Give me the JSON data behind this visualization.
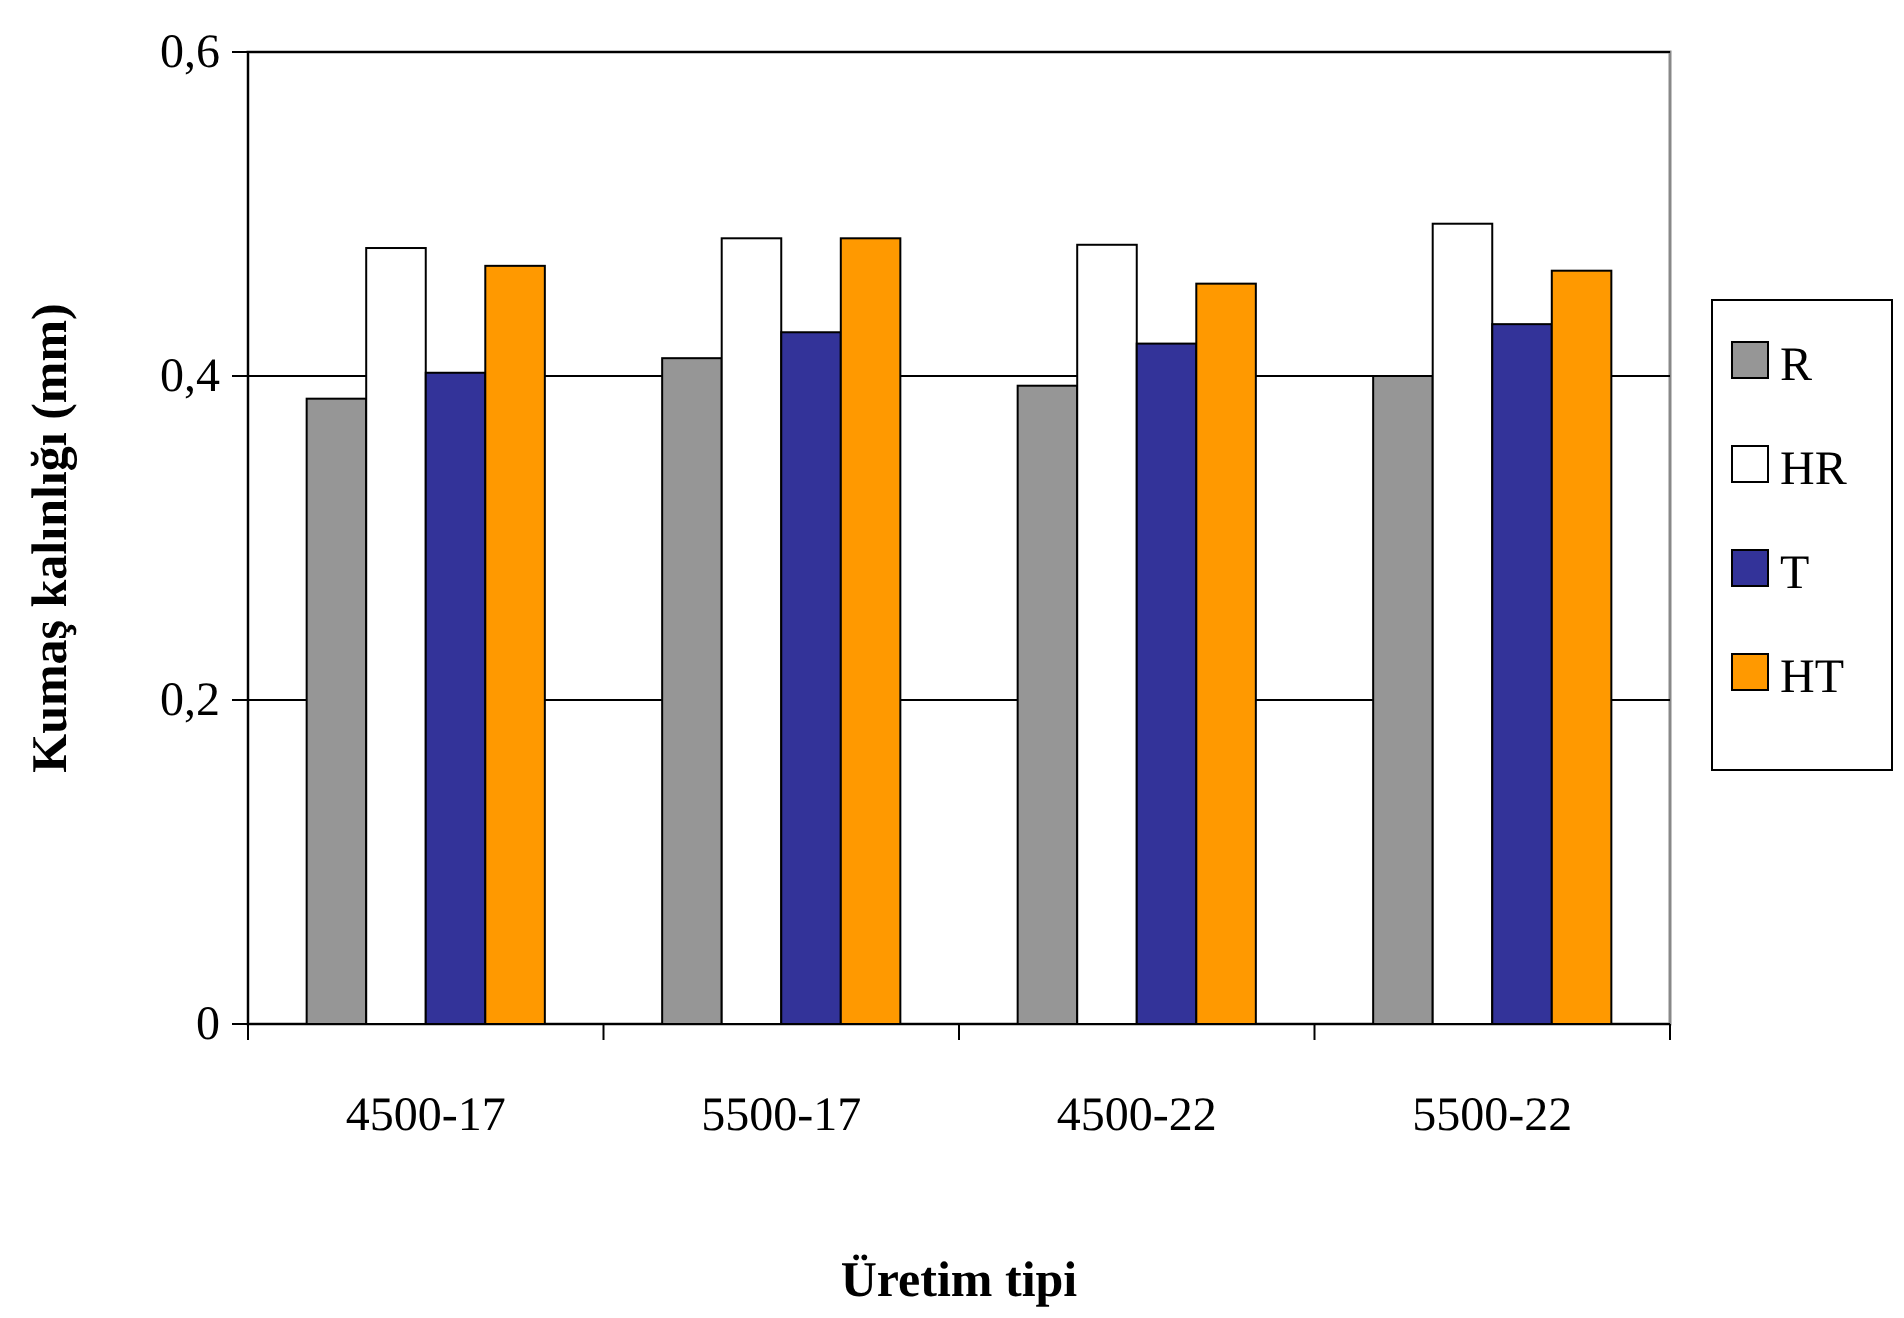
{
  "chart_data": {
    "type": "bar",
    "xlabel": "Üretim tipi",
    "ylabel": "Kumaş kalınlığı (mm)",
    "categories": [
      "4500-17",
      "5500-17",
      "4500-22",
      "5500-22"
    ],
    "series": [
      {
        "name": "R",
        "color": "#969696",
        "values": [
          0.386,
          0.411,
          0.394,
          0.4
        ]
      },
      {
        "name": "HR",
        "color": "#ffffff",
        "values": [
          0.479,
          0.485,
          0.481,
          0.494
        ]
      },
      {
        "name": "T",
        "color": "#333399",
        "values": [
          0.402,
          0.427,
          0.42,
          0.432
        ]
      },
      {
        "name": "HT",
        "color": "#ff9900",
        "values": [
          0.468,
          0.485,
          0.457,
          0.465
        ]
      }
    ],
    "ylim": [
      0,
      0.6
    ],
    "yticks": [
      0,
      {
        "value": 0.2,
        "label": "0,2"
      },
      {
        "value": 0.4,
        "label": "0,4"
      },
      {
        "value": 0.6,
        "label": "0,6"
      }
    ],
    "grid": "y",
    "legend": "right"
  }
}
